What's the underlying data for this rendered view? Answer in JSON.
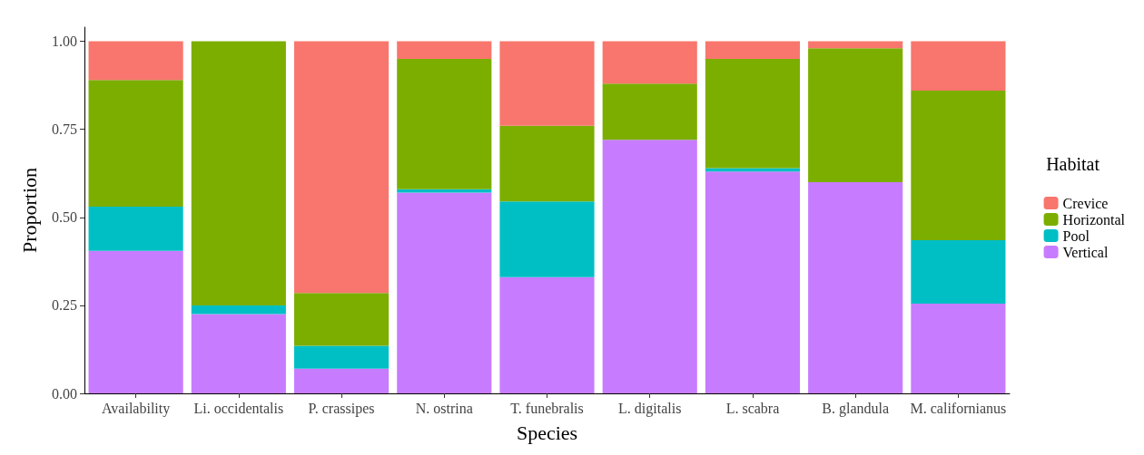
{
  "chart_data": {
    "type": "bar",
    "stacked": true,
    "xlabel": "Species",
    "ylabel": "Proportion",
    "legend_title": "Habitat",
    "legend": "right",
    "grid": false,
    "categories": [
      "Availability",
      "Li. occidentalis",
      "P. crassipes",
      "N. ostrina",
      "T. funebralis",
      "L. digitalis",
      "L. scabra",
      "B. glandula",
      "M. californianus"
    ],
    "ylim": [
      0,
      1.04
    ],
    "yticks": [
      {
        "value": 0,
        "label": "0.00"
      },
      {
        "value": 0.25,
        "label": "0.25"
      },
      {
        "value": 0.5,
        "label": "0.50"
      },
      {
        "value": 0.75,
        "label": "0.75"
      },
      {
        "value": 1,
        "label": "1.00"
      }
    ],
    "series": [
      {
        "name": "Vertical",
        "color": "#c77cff",
        "values": [
          0.405,
          0.225,
          0.07,
          0.57,
          0.33,
          0.72,
          0.63,
          0.6,
          0.255
        ]
      },
      {
        "name": "Pool",
        "color": "#00bfc4",
        "values": [
          0.125,
          0.025,
          0.065,
          0.01,
          0.215,
          0,
          0.01,
          0,
          0.18
        ]
      },
      {
        "name": "Horizontal",
        "color": "#7cae00",
        "values": [
          0.36,
          0.75,
          0.15,
          0.37,
          0.215,
          0.16,
          0.31,
          0.38,
          0.425
        ]
      },
      {
        "name": "Crevice",
        "color": "#f8766d",
        "values": [
          0.11,
          0,
          0.715,
          0.05,
          0.24,
          0.12,
          0.05,
          0.02,
          0.14
        ]
      }
    ]
  }
}
